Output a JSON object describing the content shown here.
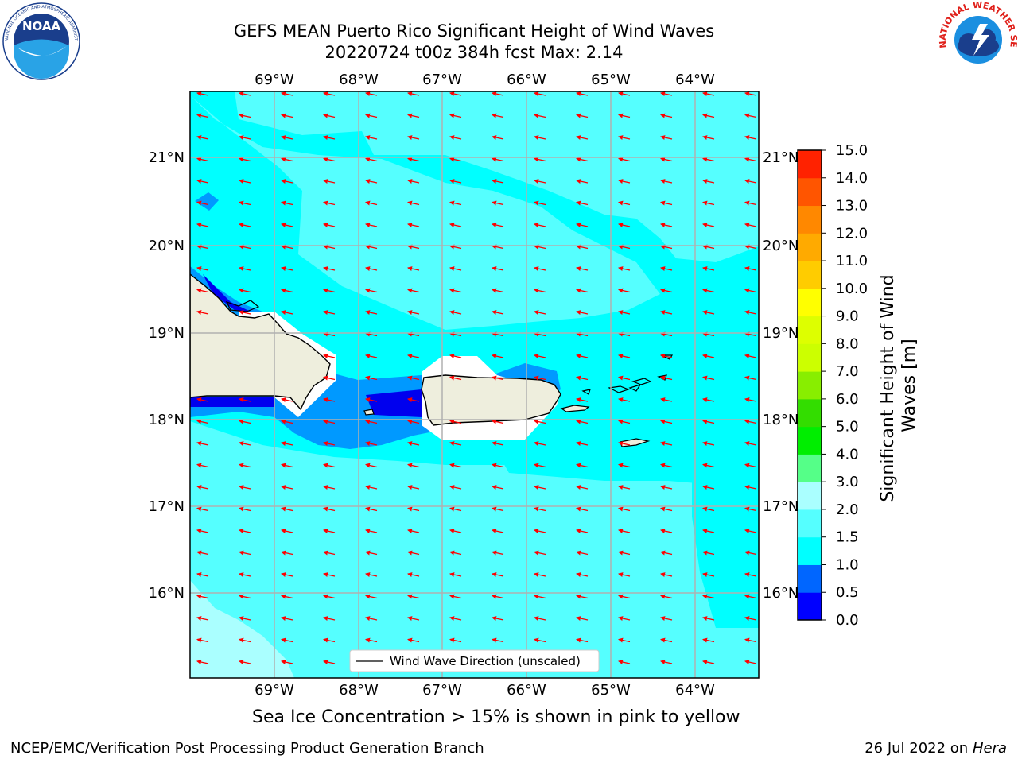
{
  "header": {
    "title_line1": "GEFS MEAN Puerto Rico Significant Height of Wind Waves",
    "title_line2": "20220724 t00z 384h fcst   Max: 2.14"
  },
  "logos": {
    "left": {
      "name": "noaa-logo",
      "text": "NOAA",
      "ring_text": "NATIONAL OCEANIC AND ATMOSPHERIC ADMINISTRATION · U.S. DEPARTMENT OF COMMERCE"
    },
    "right": {
      "name": "nws-logo",
      "ring_text": "NATIONAL WEATHER SERVICE"
    }
  },
  "map": {
    "lon_labels": [
      "69°W",
      "68°W",
      "67°W",
      "66°W",
      "65°W",
      "64°W"
    ],
    "lat_labels": [
      "21°N",
      "20°N",
      "19°N",
      "18°N",
      "17°N",
      "16°N"
    ],
    "legend_label": "Wind Wave Direction (unscaled)",
    "colors": {
      "land": "#eeeedd",
      "water_0_5_1_0": "#0099ff",
      "water_0_0_0_5": "#0000ee",
      "water_1_0_1_5": "#00ffff",
      "water_1_5_2_0": "#55ffff",
      "water_2_0_3_0": "#aaffff",
      "arrows": "#ff0000"
    }
  },
  "colorbar": {
    "label": "Significant Height of Wind Waves [m]",
    "tick_labels": [
      "0.0",
      "0.5",
      "1.0",
      "1.5",
      "2.0",
      "3.0",
      "4.0",
      "5.0",
      "6.0",
      "7.0",
      "8.0",
      "9.0",
      "10.0",
      "11.0",
      "12.0",
      "13.0",
      "14.0",
      "15.0"
    ],
    "colors": [
      "#0000ff",
      "#0066ff",
      "#00ffff",
      "#55ffff",
      "#aaffff",
      "#55ff88",
      "#00ee00",
      "#33dd00",
      "#88ee00",
      "#ccff00",
      "#ddff00",
      "#ffff00",
      "#ffcc00",
      "#ffaa00",
      "#ff8800",
      "#ff5500",
      "#ff2200"
    ]
  },
  "caption": "Sea Ice Concentration > 15% is shown in pink to yellow",
  "footer": {
    "left": "NCEP/EMC/Verification Post Processing Product Generation Branch",
    "right_date": "26 Jul 2022 on ",
    "right_host": "Hera"
  }
}
